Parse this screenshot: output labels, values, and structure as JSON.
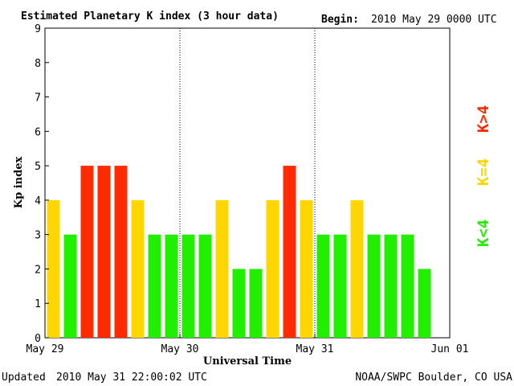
{
  "header": {
    "title": "Estimated Planetary K index (3 hour data)",
    "begin_label": "Begin:",
    "begin_value": "2010 May 29 0000 UTC"
  },
  "footer": {
    "updated_label": "Updated",
    "updated_value": "2010 May 31 22:00:02 UTC",
    "source": "NOAA/SWPC Boulder, CO USA"
  },
  "legend": [
    {
      "label": "K<4",
      "color": "#22ee00"
    },
    {
      "label": "K=4",
      "color": "#ffd600"
    },
    {
      "label": "K>4",
      "color": "#ff2a00"
    }
  ],
  "colors": {
    "low": "#22ee00",
    "moderate": "#ffd600",
    "storm": "#ff2a00"
  },
  "chart_data": {
    "type": "bar",
    "title": "Estimated Planetary K index (3 hour data)",
    "xlabel": "Universal Time",
    "ylabel": "Kp index",
    "ylim": [
      0,
      9
    ],
    "yticks": [
      "0",
      "1",
      "2",
      "3",
      "4",
      "5",
      "6",
      "7",
      "8",
      "9"
    ],
    "xticks": [
      "May 29",
      "May 30",
      "May 31",
      "Jun 01"
    ],
    "interval_hours": 3,
    "values": [
      4,
      3,
      5,
      5,
      5,
      4,
      3,
      3,
      3,
      3,
      4,
      2,
      2,
      4,
      5,
      4,
      3,
      3,
      4,
      3,
      3,
      3,
      2
    ],
    "grid": "vertical dotted lines at day boundaries"
  }
}
